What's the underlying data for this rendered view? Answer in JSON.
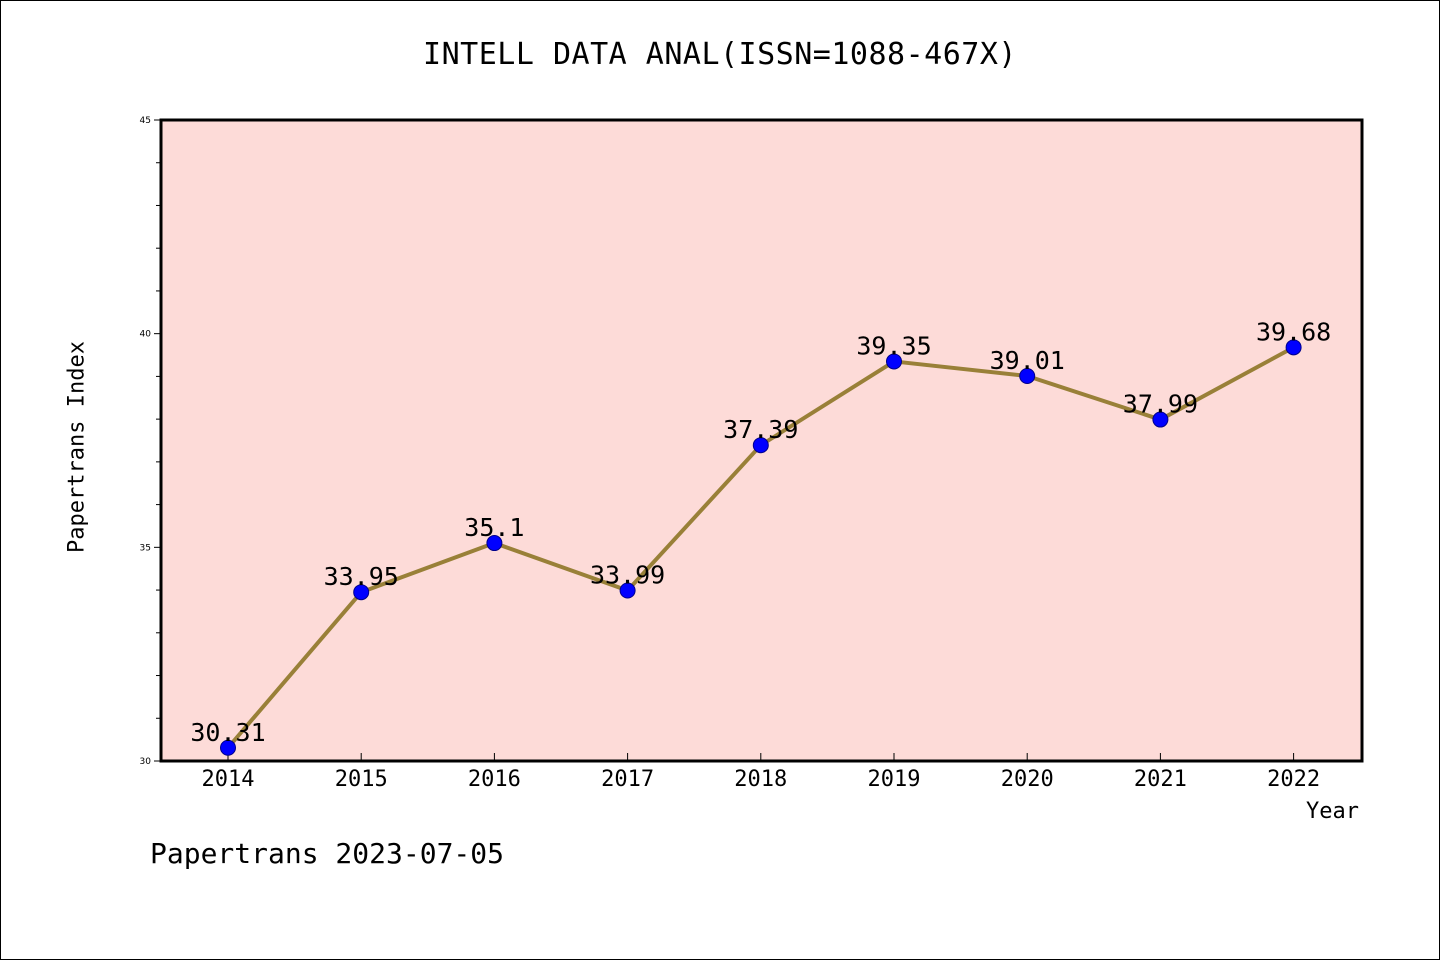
{
  "chart_data": {
    "type": "line",
    "title": "INTELL DATA ANAL(ISSN=1088-467X)",
    "xlabel": "Year",
    "ylabel": "Papertrans Index",
    "categories": [
      "2014",
      "2015",
      "2016",
      "2017",
      "2018",
      "2019",
      "2020",
      "2021",
      "2022"
    ],
    "series": [
      {
        "values": [
          30.31,
          33.95,
          35.1,
          33.99,
          37.39,
          39.35,
          39.01,
          37.99,
          39.68
        ],
        "labels": [
          "30.31",
          "33.95",
          "35.1",
          "33.99",
          "37.39",
          "39.35",
          "39.01",
          "37.99",
          "39.68"
        ]
      }
    ],
    "ylim": [
      30,
      45
    ],
    "yticks": [
      "30",
      "35",
      "40",
      "45"
    ],
    "grid": false,
    "colors": {
      "plot_background": "#fddbd8",
      "line": "#998038",
      "marker": "#0000ff"
    }
  },
  "footer": {
    "text": "Papertrans 2023-07-05"
  }
}
